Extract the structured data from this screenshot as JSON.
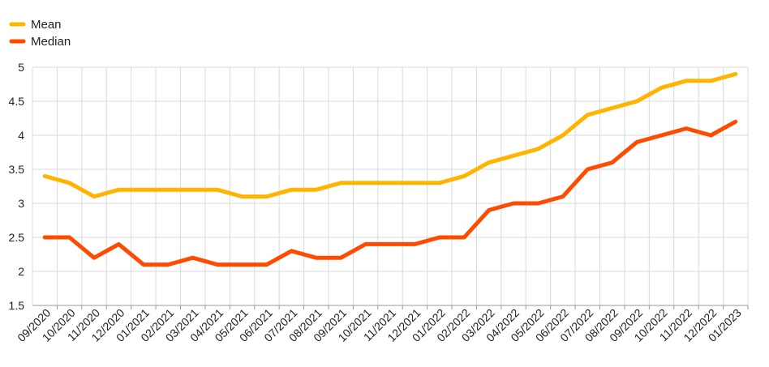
{
  "chart_data": {
    "type": "line",
    "title": "",
    "xlabel": "",
    "ylabel": "",
    "ylim": [
      1.5,
      5
    ],
    "yticks": [
      1.5,
      2,
      2.5,
      3,
      3.5,
      4,
      4.5,
      5
    ],
    "ytick_labels": [
      "1.5",
      "2",
      "2.5",
      "3",
      "3.5",
      "4",
      "4.5",
      "5"
    ],
    "grid": true,
    "legend_position": "top-left",
    "categories": [
      "09/2020",
      "10/2020",
      "11/2020",
      "12/2020",
      "01/2021",
      "02/2021",
      "03/2021",
      "04/2021",
      "05/2021",
      "06/2021",
      "07/2021",
      "08/2021",
      "09/2021",
      "10/2021",
      "11/2021",
      "12/2021",
      "01/2022",
      "02/2022",
      "03/2022",
      "04/2022",
      "05/2022",
      "06/2022",
      "07/2022",
      "08/2022",
      "09/2022",
      "10/2022",
      "11/2022",
      "12/2022",
      "01/2023"
    ],
    "series": [
      {
        "name": "Mean",
        "color": "#FFB400",
        "values": [
          3.4,
          3.3,
          3.1,
          3.2,
          3.2,
          3.2,
          3.2,
          3.2,
          3.1,
          3.1,
          3.2,
          3.2,
          3.3,
          3.3,
          3.3,
          3.3,
          3.3,
          3.4,
          3.6,
          3.7,
          3.8,
          4.0,
          4.3,
          4.4,
          4.5,
          4.7,
          4.8,
          4.8,
          4.9
        ]
      },
      {
        "name": "Median",
        "color": "#FF4B00",
        "values": [
          2.5,
          2.5,
          2.2,
          2.4,
          2.1,
          2.1,
          2.2,
          2.1,
          2.1,
          2.1,
          2.3,
          2.2,
          2.2,
          2.4,
          2.4,
          2.4,
          2.5,
          2.5,
          2.9,
          3.0,
          3.0,
          3.1,
          3.5,
          3.6,
          3.9,
          4.0,
          4.1,
          4.0,
          4.2
        ]
      }
    ]
  }
}
